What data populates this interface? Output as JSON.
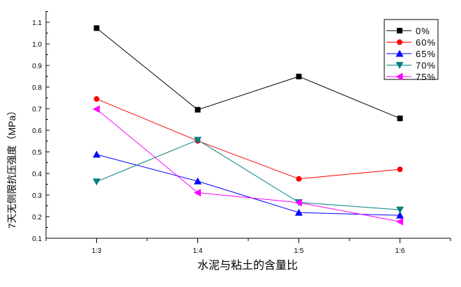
{
  "chart_data": {
    "type": "line",
    "title": "",
    "xlabel": "水泥与粘土的含量比",
    "ylabel": "7天无侧限抗压强度（MPa）",
    "categories": [
      "1:3",
      "1:4",
      "1:5",
      "1:6"
    ],
    "ylim": [
      0.1,
      1.15
    ],
    "yticks": [
      "0.1",
      "0.2",
      "0.3",
      "0.4",
      "0.5",
      "0.6",
      "0.7",
      "0.8",
      "0.9",
      "1.0",
      "1.1"
    ],
    "grid": false,
    "legend_position": "top-right",
    "series": [
      {
        "name": "0%",
        "color": "#000000",
        "marker": "square",
        "values": [
          1.073,
          0.695,
          0.849,
          0.655
        ]
      },
      {
        "name": "60%",
        "color": "#ff0000",
        "marker": "circle",
        "values": [
          0.745,
          0.551,
          0.375,
          0.419
        ]
      },
      {
        "name": "65%",
        "color": "#0000ff",
        "marker": "triangle-up",
        "values": [
          0.488,
          0.364,
          0.219,
          0.206
        ]
      },
      {
        "name": "70%",
        "color": "#008080",
        "marker": "triangle-down",
        "values": [
          0.362,
          0.555,
          0.266,
          0.232
        ]
      },
      {
        "name": "75%",
        "color": "#ff00ff",
        "marker": "triangle-left",
        "values": [
          0.698,
          0.311,
          0.265,
          0.177
        ]
      }
    ]
  }
}
